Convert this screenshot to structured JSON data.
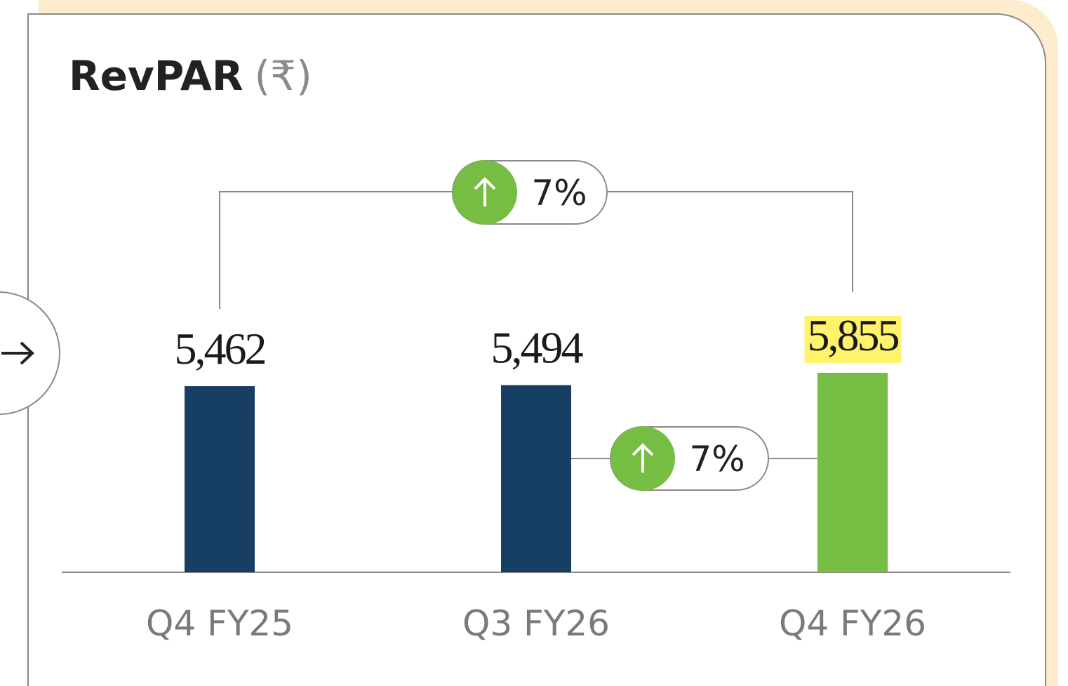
{
  "chart_data": {
    "type": "bar",
    "title": "RevPAR",
    "unit": "(₹)",
    "categories": [
      "Q4 FY25",
      "Q3 FY26",
      "Q4 FY26"
    ],
    "values": [
      5462,
      5494,
      5855
    ],
    "value_labels": [
      "5,462",
      "5,494",
      "5,855"
    ],
    "colors": [
      "#173f63",
      "#173f63",
      "#76bd43"
    ],
    "highlight_color": "#fff36b",
    "annotations": [
      "7%",
      "7%"
    ]
  }
}
